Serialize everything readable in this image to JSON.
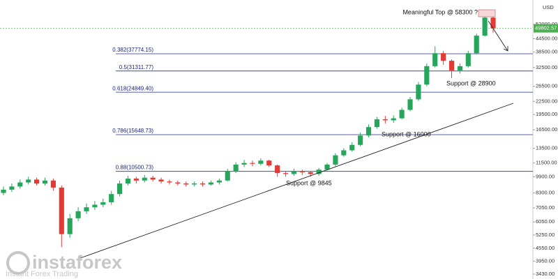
{
  "chart_data": {
    "type": "candlestick",
    "currency": "USD",
    "categories": [
      null,
      null,
      null,
      null,
      null,
      null,
      null,
      null,
      null,
      null,
      null,
      null,
      null,
      null,
      null,
      null,
      null,
      null,
      null,
      null,
      null,
      null,
      null,
      null,
      null,
      null,
      null,
      null,
      null,
      null,
      null,
      null,
      null,
      null,
      null,
      null,
      null,
      null,
      null,
      null,
      null,
      null,
      null,
      null,
      null,
      null,
      null,
      null,
      null,
      null,
      null,
      null,
      null,
      null,
      null,
      null,
      null,
      null,
      null,
      null
    ],
    "open": [
      8300,
      8600,
      8900,
      9300,
      9600,
      9200,
      9500,
      8800,
      5300,
      6300,
      6800,
      7100,
      7300,
      7500,
      8200,
      9200,
      9700,
      9500,
      9800,
      9600,
      9400,
      9300,
      9200,
      9100,
      9200,
      9100,
      9300,
      9500,
      10500,
      11300,
      11500,
      11400,
      11800,
      11200,
      10300,
      10200,
      10500,
      10400,
      10200,
      10700,
      11300,
      12500,
      13200,
      14000,
      15500,
      17000,
      18500,
      18300,
      18700,
      20500,
      23000,
      27000,
      33000,
      38000,
      35000,
      31500,
      33000,
      38000,
      46000,
      56000
    ],
    "high": [
      8900,
      9200,
      9600,
      9900,
      9800,
      9800,
      9700,
      9000,
      6600,
      7100,
      7400,
      7600,
      7800,
      8500,
      9500,
      10000,
      9900,
      10100,
      10000,
      9800,
      9600,
      9500,
      9400,
      9400,
      9400,
      9500,
      9700,
      10800,
      11600,
      11900,
      11800,
      12100,
      11900,
      11300,
      10500,
      10800,
      10700,
      10500,
      10900,
      11500,
      12800,
      13500,
      14400,
      16000,
      17500,
      19000,
      19200,
      19300,
      21000,
      23600,
      27800,
      34000,
      41000,
      39000,
      35500,
      34000,
      39000,
      47000,
      58300,
      56500
    ],
    "low": [
      8100,
      8400,
      8700,
      9100,
      9000,
      9000,
      8500,
      4600,
      5100,
      6100,
      6600,
      6900,
      7100,
      7300,
      8000,
      9000,
      9200,
      9300,
      9400,
      9200,
      9100,
      9000,
      8900,
      8900,
      8900,
      9000,
      9100,
      9400,
      10300,
      11000,
      11100,
      11200,
      11000,
      9900,
      9900,
      10000,
      10100,
      9900,
      10000,
      10600,
      11100,
      12300,
      13000,
      13800,
      15200,
      16700,
      17700,
      17800,
      18500,
      20200,
      22600,
      26500,
      32500,
      33500,
      29000,
      30500,
      32500,
      37500,
      45500,
      47500
    ],
    "close": [
      8600,
      8900,
      9300,
      9600,
      9200,
      9500,
      8800,
      5300,
      6300,
      6800,
      7100,
      7300,
      7500,
      8200,
      9200,
      9700,
      9500,
      9800,
      9600,
      9400,
      9300,
      9200,
      9100,
      9200,
      9100,
      9300,
      9500,
      10500,
      11300,
      11500,
      11400,
      11800,
      11200,
      10300,
      10200,
      10500,
      10400,
      10200,
      10700,
      11300,
      12500,
      13200,
      14000,
      15500,
      17000,
      18500,
      18300,
      18700,
      20500,
      23000,
      27000,
      33000,
      38000,
      35000,
      31500,
      33000,
      38000,
      46000,
      56000,
      49802.57
    ],
    "up_color": "#26a65b",
    "down_color": "#e53935",
    "log_scale": true,
    "ylim": [
      3252,
      67800
    ],
    "yticks": [
      {
        "value": 3430,
        "label": "3430.00"
      },
      {
        "value": 3950,
        "label": "3950.00"
      },
      {
        "value": 4550,
        "label": "4550.00"
      },
      {
        "value": 5250,
        "label": "5250.00"
      },
      {
        "value": 6050,
        "label": "6050.00"
      },
      {
        "value": 7050,
        "label": "7050.00"
      },
      {
        "value": 8300,
        "label": "8300.00"
      },
      {
        "value": 9900,
        "label": "9900.00"
      },
      {
        "value": 11500,
        "label": "11500.00"
      },
      {
        "value": 13500,
        "label": "13500.00"
      },
      {
        "value": 16500,
        "label": "16500.00"
      },
      {
        "value": 19500,
        "label": "19500.00"
      },
      {
        "value": 22500,
        "label": "22500.00"
      },
      {
        "value": 26500,
        "label": "26500.00"
      },
      {
        "value": 32500,
        "label": "32500.00"
      },
      {
        "value": 38500,
        "label": "38500.00"
      },
      {
        "value": 44500,
        "label": "44500.00"
      },
      {
        "value": 52000,
        "label": "52000.00"
      }
    ],
    "last_price": {
      "value": 49802.57,
      "label": "49802.57"
    },
    "levels": [
      {
        "value": 37774.15,
        "label": "0.382(37774.15)"
      },
      {
        "value": 31311.77,
        "label": "0.5(31311.77)"
      },
      {
        "value": 24849.4,
        "label": "0.618(24849.40)"
      },
      {
        "value": 15648.73,
        "label": "0.786(15648.73)"
      },
      {
        "value": 10500.73,
        "label": "0.88(10500.73)"
      }
    ],
    "annotations": [
      "Meaningful Top @ 58300 ?",
      "Support @ 28900",
      "Support @ 16000",
      "Support @ 9845"
    ]
  },
  "watermark": {
    "brand": "instaforex",
    "tagline": "Instant Forex Trading"
  }
}
